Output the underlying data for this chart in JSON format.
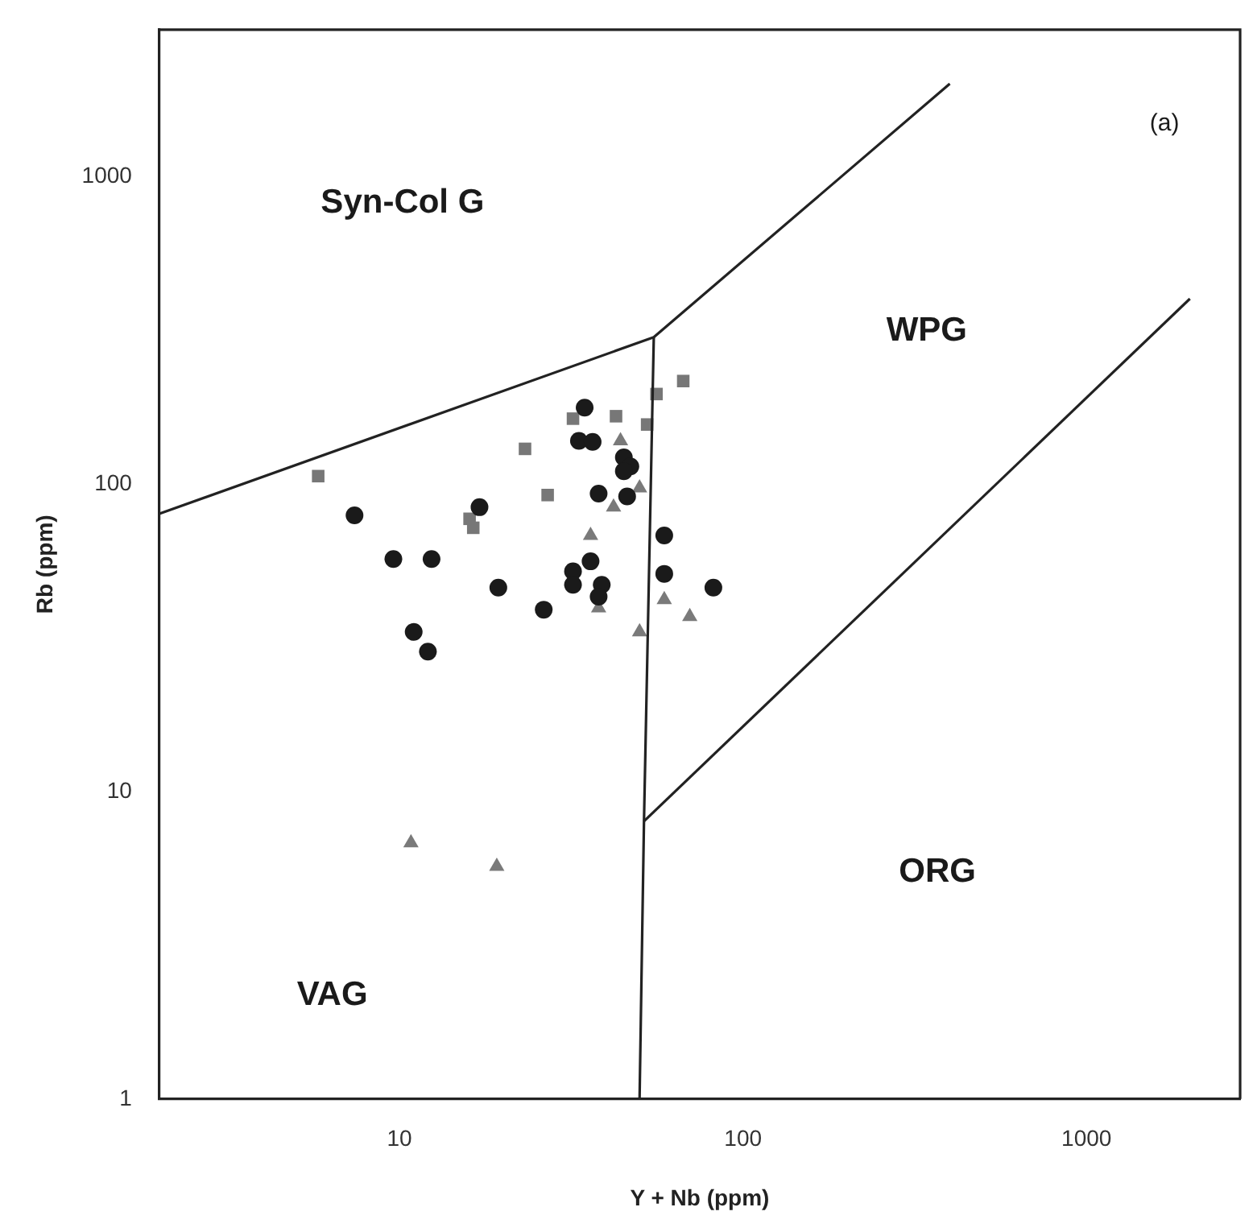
{
  "chart_data": {
    "type": "scatter",
    "xlabel": "Y + Nb (ppm)",
    "ylabel": "Rb (ppm)",
    "log": "xy",
    "xlim": [
      2,
      2800
    ],
    "ylim": [
      1,
      3000
    ],
    "xticks": [
      10,
      100,
      1000
    ],
    "yticks": [
      1,
      10,
      100,
      1000
    ],
    "grid": false,
    "legend": false,
    "annotations": [
      "Syn-Col G",
      "WPG",
      "ORG",
      "VAG",
      "(a)"
    ],
    "series": [
      {
        "type": "line",
        "color": "#222222",
        "marker": "none",
        "x": [
          2,
          55,
          400
        ],
        "values": [
          80,
          300,
          2000
        ]
      },
      {
        "type": "line",
        "color": "#222222",
        "marker": "none",
        "x": [
          55,
          51.5,
          50
        ],
        "values": [
          300,
          8,
          1
        ]
      },
      {
        "type": "line",
        "color": "#222222",
        "marker": "none",
        "x": [
          51.5,
          2000
        ],
        "values": [
          8,
          400
        ]
      },
      {
        "type": "scatter",
        "color": "#1a1a1a",
        "marker": "circle",
        "x": [
          34.6,
          33.3,
          36.5,
          45,
          47,
          45,
          38,
          46,
          7.4,
          17.1,
          9.6,
          12.4,
          36,
          32,
          32,
          38.8,
          38,
          19.4,
          26.3,
          11,
          12.1,
          59,
          59,
          82
        ],
        "values": [
          177,
          138,
          137,
          122,
          114,
          110,
          93,
          91,
          79,
          84,
          57,
          57,
          56,
          52,
          47,
          47,
          43,
          46,
          39,
          33,
          28.5,
          68,
          51,
          46
        ]
      },
      {
        "type": "scatter",
        "color": "#777777",
        "marker": "square",
        "x": [
          5.8,
          23.2,
          27,
          32,
          42.7,
          67,
          56,
          52.6,
          16,
          16.4
        ],
        "values": [
          106,
          130,
          92,
          163,
          166,
          216,
          196,
          156,
          77,
          72
        ]
      },
      {
        "type": "scatter",
        "color": "#7a7a7a",
        "marker": "triangle",
        "x": [
          36,
          44,
          59,
          70,
          50,
          38,
          50,
          42,
          10.8,
          19.2
        ],
        "values": [
          68,
          138,
          42,
          37,
          33,
          39.5,
          97,
          84,
          6.8,
          5.7
        ]
      }
    ]
  }
}
